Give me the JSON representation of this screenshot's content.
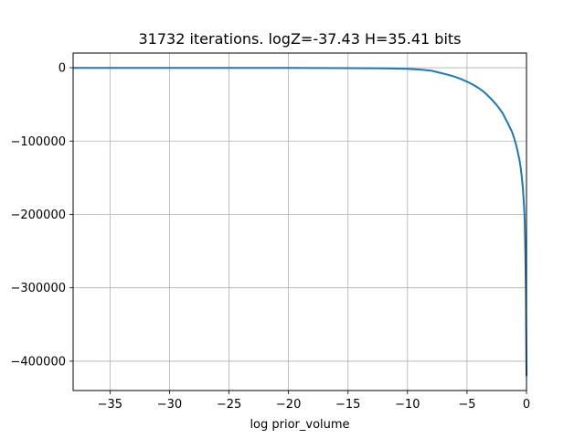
{
  "chart_data": {
    "type": "line",
    "title": "31732 iterations. logZ=-37.43 H=35.41 bits",
    "xlabel": "log prior_volume",
    "ylabel": "",
    "xlim": [
      -38.1,
      0
    ],
    "ylim": [
      -440000,
      20000
    ],
    "grid": true,
    "x_ticks": [
      -35,
      -30,
      -25,
      -20,
      -15,
      -10,
      -5,
      0
    ],
    "x_tick_labels": [
      "−35",
      "−30",
      "−25",
      "−20",
      "−15",
      "−10",
      "−5",
      "0"
    ],
    "y_ticks": [
      0,
      -100000,
      -200000,
      -300000,
      -400000
    ],
    "y_tick_labels": [
      "0",
      "−100000",
      "−200000",
      "−300000",
      "−400000"
    ],
    "series": [
      {
        "color": "#1f77b4",
        "x": [
          -38.1,
          -35,
          -30,
          -25,
          -20,
          -15,
          -12,
          -10,
          -9,
          -8,
          -7.5,
          -7,
          -6.5,
          -6,
          -5.5,
          -5,
          -4.5,
          -4,
          -3.5,
          -3,
          -2.5,
          -2,
          -1.5,
          -1.2,
          -1,
          -0.8,
          -0.6,
          -0.5,
          -0.4,
          -0.3,
          -0.2,
          -0.15,
          -0.1,
          -0.05,
          0
        ],
        "y": [
          -300,
          -300,
          -300,
          -300,
          -300,
          -500,
          -800,
          -1500,
          -2500,
          -4000,
          -6000,
          -8000,
          -10000,
          -12500,
          -15500,
          -19000,
          -23000,
          -28000,
          -34000,
          -42000,
          -51000,
          -62000,
          -78000,
          -88000,
          -98000,
          -110000,
          -125000,
          -135000,
          -148000,
          -165000,
          -190000,
          -210000,
          -250000,
          -310000,
          -420000
        ]
      }
    ]
  }
}
